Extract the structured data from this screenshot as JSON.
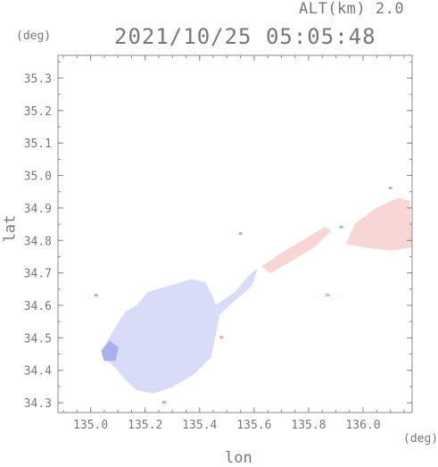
{
  "header": {
    "altitude_label": "ALT(km) 2.0",
    "timestamp": "2021/10/25 05:05:48"
  },
  "axes": {
    "x_label": "lon",
    "y_label": "lat",
    "x_unit": "(deg)",
    "y_unit": "(deg)"
  },
  "chart_data": {
    "type": "heatmap",
    "title": "2021/10/25 05:05:48",
    "xlabel": "lon",
    "ylabel": "lat",
    "xlim": [
      134.88,
      136.18
    ],
    "ylim": [
      34.27,
      35.37
    ],
    "x_ticks": [
      135.0,
      135.2,
      135.4,
      135.6,
      135.8,
      136.0
    ],
    "x_tick_labels": [
      "135.0",
      "135.2",
      "135.4",
      "135.6",
      "135.8",
      "136.0"
    ],
    "y_ticks": [
      34.3,
      34.4,
      34.5,
      34.6,
      34.7,
      34.8,
      34.9,
      35.0,
      35.1,
      35.2,
      35.3
    ],
    "y_tick_labels": [
      "34.3",
      "34.4",
      "34.5",
      "34.6",
      "34.7",
      "34.8",
      "34.9",
      "35.0",
      "35.1",
      "35.2",
      "35.3"
    ],
    "grid": false,
    "colors": {
      "approaching": "#d8dcf7",
      "approaching_strong": "#a9b0ee",
      "receding": "#f9d6d6",
      "receding_strong": "#f4a7a7",
      "axis": "#888888"
    },
    "regions": [
      {
        "name": "osaka-bay-echo",
        "polarity": "approaching",
        "outline": [
          [
            135.05,
            34.47
          ],
          [
            135.09,
            34.53
          ],
          [
            135.13,
            34.58
          ],
          [
            135.17,
            34.6
          ],
          [
            135.21,
            34.64
          ],
          [
            135.29,
            34.66
          ],
          [
            135.37,
            34.68
          ],
          [
            135.42,
            34.67
          ],
          [
            135.45,
            34.62
          ],
          [
            135.47,
            34.56
          ],
          [
            135.46,
            34.52
          ],
          [
            135.44,
            34.44
          ],
          [
            135.38,
            34.39
          ],
          [
            135.3,
            34.35
          ],
          [
            135.23,
            34.33
          ],
          [
            135.17,
            34.34
          ],
          [
            135.13,
            34.37
          ],
          [
            135.09,
            34.41
          ],
          [
            135.05,
            34.44
          ]
        ]
      },
      {
        "name": "osaka-bay-core",
        "polarity": "approaching_strong",
        "outline": [
          [
            135.04,
            34.46
          ],
          [
            135.07,
            34.49
          ],
          [
            135.1,
            34.47
          ],
          [
            135.09,
            34.43
          ],
          [
            135.05,
            34.43
          ]
        ]
      },
      {
        "name": "connecting-band",
        "polarity": "approaching",
        "outline": [
          [
            135.46,
            34.6
          ],
          [
            135.53,
            34.64
          ],
          [
            135.58,
            34.69
          ],
          [
            135.61,
            34.71
          ],
          [
            135.59,
            34.66
          ],
          [
            135.52,
            34.61
          ],
          [
            135.47,
            34.57
          ]
        ]
      },
      {
        "name": "northeast-band",
        "polarity": "receding",
        "outline": [
          [
            135.63,
            34.72
          ],
          [
            135.7,
            34.76
          ],
          [
            135.78,
            34.8
          ],
          [
            135.86,
            34.84
          ],
          [
            135.88,
            34.83
          ],
          [
            135.82,
            34.78
          ],
          [
            135.74,
            34.74
          ],
          [
            135.66,
            34.7
          ]
        ]
      },
      {
        "name": "east-edge-echo",
        "polarity": "receding",
        "outline": [
          [
            135.94,
            34.79
          ],
          [
            135.97,
            34.85
          ],
          [
            136.05,
            34.9
          ],
          [
            136.13,
            34.93
          ],
          [
            136.17,
            34.92
          ],
          [
            136.18,
            34.78
          ],
          [
            136.1,
            34.77
          ],
          [
            136.0,
            34.78
          ]
        ]
      }
    ],
    "speckles": [
      {
        "lon": 135.02,
        "lat": 34.63,
        "polarity": "approaching_strong"
      },
      {
        "lon": 135.27,
        "lat": 34.3,
        "polarity": "approaching_strong"
      },
      {
        "lon": 135.55,
        "lat": 34.82,
        "polarity": "approaching_strong"
      },
      {
        "lon": 135.48,
        "lat": 34.5,
        "polarity": "receding_strong"
      },
      {
        "lon": 135.87,
        "lat": 34.63,
        "polarity": "receding_strong"
      },
      {
        "lon": 136.1,
        "lat": 34.96,
        "polarity": "approaching_strong"
      },
      {
        "lon": 135.92,
        "lat": 34.84,
        "polarity": "approaching_strong"
      }
    ]
  }
}
